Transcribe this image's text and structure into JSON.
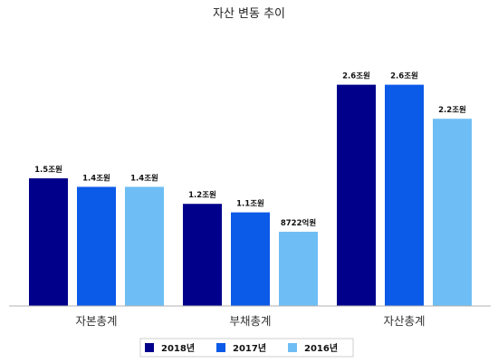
{
  "chart_data": {
    "type": "bar",
    "title": "자산 변동 추이",
    "xlabel": "",
    "ylabel": "",
    "categories": [
      "자본총계",
      "부채총계",
      "자산총계"
    ],
    "series": [
      {
        "name": "2018년",
        "color": "#00008b",
        "values": [
          1.5,
          1.2,
          2.6
        ],
        "labels": [
          "1.5조원",
          "1.2조원",
          "2.6조원"
        ]
      },
      {
        "name": "2017년",
        "color": "#0c5ae8",
        "values": [
          1.4,
          1.1,
          2.6
        ],
        "labels": [
          "1.4조원",
          "1.1조원",
          "2.6조원"
        ]
      },
      {
        "name": "2016년",
        "color": "#6ebef5",
        "values": [
          1.4,
          0.8722,
          2.2
        ],
        "labels": [
          "1.4조원",
          "8722억원",
          "2.2조원"
        ]
      }
    ],
    "unit": "조원",
    "ylim": [
      0,
      2.8
    ],
    "grid": false,
    "legend_position": "bottom",
    "baseline_color": "#b0b0b0"
  }
}
